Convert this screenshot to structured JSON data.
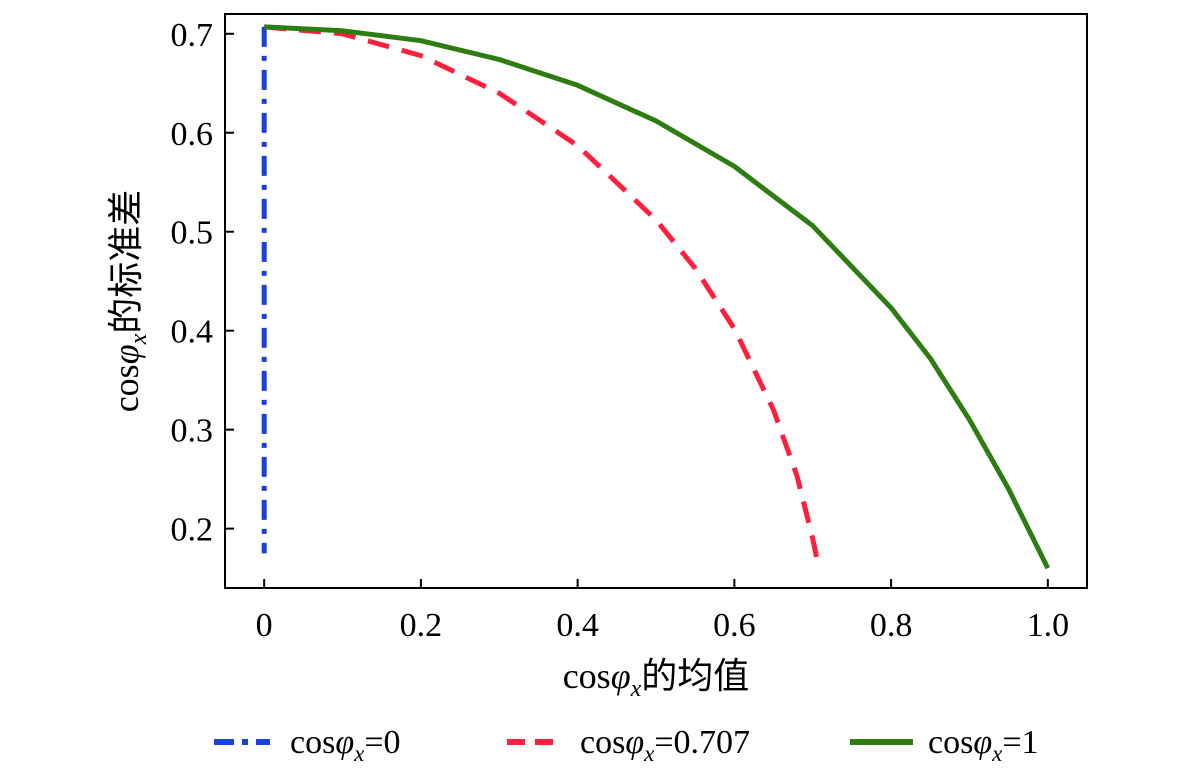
{
  "chart_data": {
    "type": "line",
    "title": "",
    "xlabel": {
      "prefix": "cos",
      "symbol": "φ",
      "subscript": "x",
      "suffix": "的均值"
    },
    "ylabel": {
      "prefix": "cos",
      "symbol": "φ",
      "subscript": "x",
      "suffix": "的标准差"
    },
    "xlim": [
      -0.05,
      1.05
    ],
    "ylim": [
      0.14,
      0.72
    ],
    "xticks": [
      0,
      0.2,
      0.4,
      0.6,
      0.8,
      1.0
    ],
    "xtick_labels": [
      "0",
      "0.2",
      "0.4",
      "0.6",
      "0.8",
      "1.0"
    ],
    "yticks": [
      0.2,
      0.3,
      0.4,
      0.5,
      0.6,
      0.7
    ],
    "ytick_labels": [
      "0.2",
      "0.3",
      "0.4",
      "0.5",
      "0.6",
      "0.7"
    ],
    "grid": false,
    "legend_position": "bottom",
    "series": [
      {
        "key": "s0",
        "legend": {
          "prefix": "cos",
          "symbol": "φ",
          "subscript": "x",
          "suffix": "=0"
        },
        "color": "#1a3fe0",
        "style": "dashdot",
        "x": [
          0.0,
          0.0
        ],
        "y": [
          0.707,
          0.175
        ]
      },
      {
        "key": "s1",
        "legend": {
          "prefix": "cos",
          "symbol": "φ",
          "subscript": "x",
          "suffix": "=0.707"
        },
        "color": "#ff1f3d",
        "style": "dashed",
        "x": [
          0.0,
          0.1,
          0.2,
          0.3,
          0.4,
          0.5,
          0.55,
          0.6,
          0.65,
          0.68,
          0.7,
          0.707
        ],
        "y": [
          0.707,
          0.7,
          0.678,
          0.64,
          0.587,
          0.512,
          0.463,
          0.402,
          0.32,
          0.253,
          0.19,
          0.163
        ]
      },
      {
        "key": "s2",
        "legend": {
          "prefix": "cos",
          "symbol": "φ",
          "subscript": "x",
          "suffix": "=1"
        },
        "color": "#2e7d12",
        "style": "solid",
        "x": [
          0.0,
          0.1,
          0.2,
          0.3,
          0.4,
          0.5,
          0.6,
          0.7,
          0.8,
          0.85,
          0.9,
          0.95,
          1.0
        ],
        "y": [
          0.707,
          0.703,
          0.693,
          0.674,
          0.648,
          0.612,
          0.566,
          0.506,
          0.423,
          0.372,
          0.31,
          0.24,
          0.16
        ]
      }
    ]
  }
}
